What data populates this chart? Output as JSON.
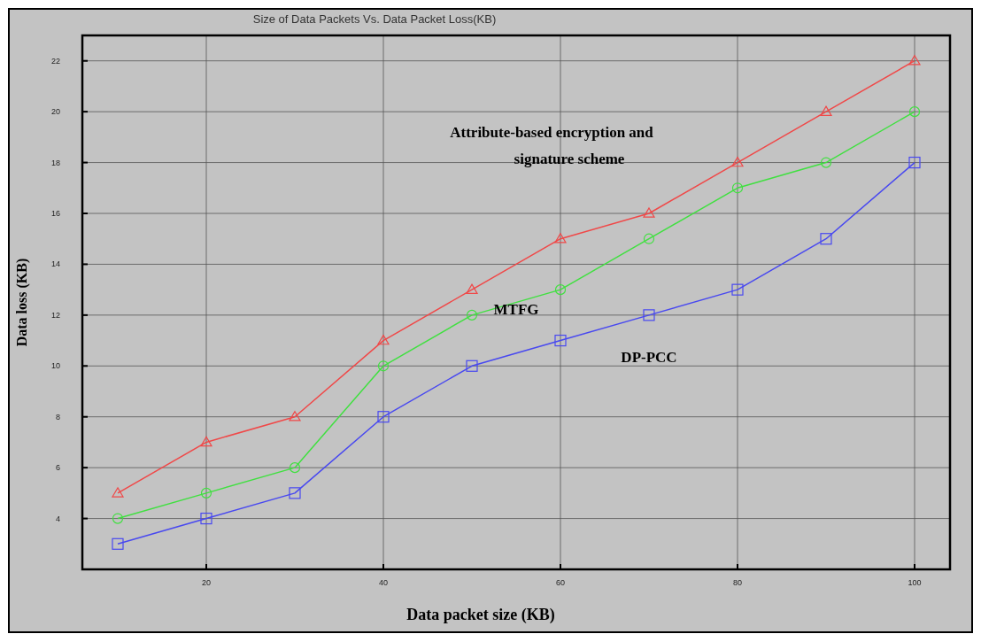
{
  "chart_data": {
    "type": "line",
    "title": "Size of Data Packets Vs. Data Packet Loss(KB)",
    "xlabel": "Data packet  size (KB)",
    "ylabel": "Data loss (KB)",
    "x": [
      10,
      20,
      30,
      40,
      50,
      60,
      70,
      80,
      90,
      100
    ],
    "series": [
      {
        "name": "Attribute-based encryption and signature scheme",
        "color": "#f04848",
        "marker": "triangle",
        "values": [
          5,
          7,
          8,
          11,
          13,
          15,
          16,
          18,
          20,
          22
        ]
      },
      {
        "name": "MTFG",
        "color": "#40e040",
        "marker": "circle",
        "values": [
          4,
          5,
          6,
          10,
          12,
          13,
          15,
          17,
          18,
          20
        ]
      },
      {
        "name": "DP-PCC",
        "color": "#4848f0",
        "marker": "square",
        "values": [
          3,
          4,
          5,
          8,
          10,
          11,
          12,
          13,
          15,
          18
        ]
      }
    ],
    "xlim": [
      6,
      104
    ],
    "xticks": [
      20,
      40,
      60,
      80,
      100
    ],
    "ylim": [
      2,
      23
    ],
    "yticks": [
      4,
      6,
      8,
      10,
      12,
      14,
      16,
      18,
      20,
      22
    ],
    "grid": true,
    "line_style": "solid"
  }
}
